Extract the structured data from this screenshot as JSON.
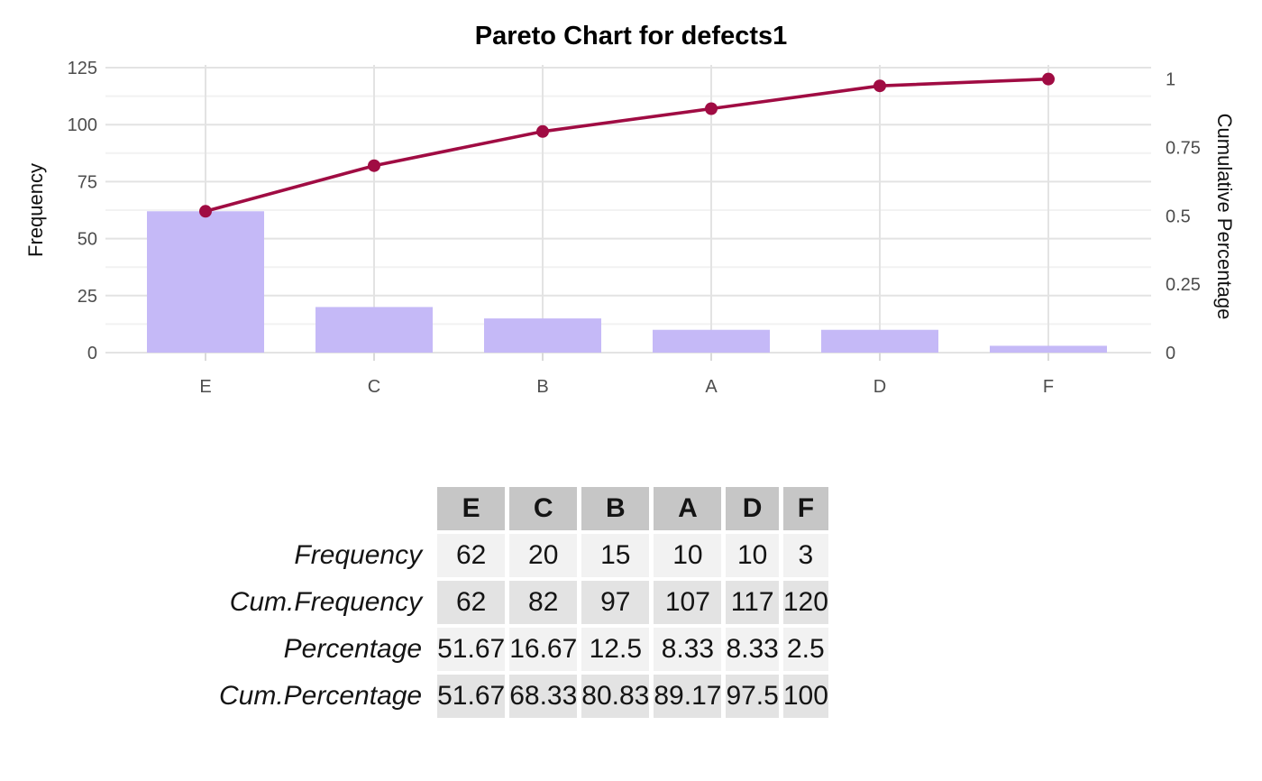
{
  "chart": {
    "title": "Pareto Chart for defects1",
    "left_axis": {
      "label": "Frequency",
      "tick_values": [
        0,
        25,
        50,
        75,
        100,
        125
      ],
      "tick_labels": [
        "0",
        "25",
        "50",
        "75",
        "100",
        "125"
      ]
    },
    "right_axis": {
      "label": "Cumulative Percentage",
      "tick_values": [
        0,
        0.25,
        0.5,
        0.75,
        1
      ],
      "tick_labels": [
        "0",
        "0.25",
        "0.5",
        "0.75",
        "1"
      ]
    }
  },
  "chart_data": {
    "type": "bar",
    "subtype": "pareto (bars + cumulative line)",
    "title": "Pareto Chart for defects1",
    "categories": [
      "E",
      "C",
      "B",
      "A",
      "D",
      "F"
    ],
    "series": [
      {
        "name": "Frequency",
        "type": "bar",
        "axis": "left",
        "values": [
          62,
          20,
          15,
          10,
          10,
          3
        ]
      },
      {
        "name": "Cum.Frequency",
        "type": "line",
        "axis": "left",
        "values": [
          62,
          82,
          97,
          107,
          117,
          120
        ]
      },
      {
        "name": "Cum.Percentage",
        "type": "line",
        "axis": "right",
        "values": [
          0.5167,
          0.6833,
          0.8083,
          0.8917,
          0.975,
          1
        ]
      }
    ],
    "xlabel": "",
    "ylabel": "Frequency",
    "y2label": "Cumulative Percentage",
    "ylim": [
      0,
      125
    ],
    "y2lim": [
      0,
      1
    ],
    "grid": "on",
    "legend": "none"
  },
  "colors": {
    "bar_fill": "#c5b9f7",
    "line": "#a00c43",
    "grid_major": "#e3e3e3",
    "grid_minor": "#f2f2f2",
    "tick_mark": "#dadada",
    "tick_text": "#4d4d4d"
  },
  "table": {
    "columns": [
      "E",
      "C",
      "B",
      "A",
      "D",
      "F"
    ],
    "rows": [
      {
        "label": "Frequency",
        "values": [
          "62",
          "20",
          "15",
          "10",
          "10",
          "3"
        ]
      },
      {
        "label": "Cum.Frequency",
        "values": [
          "62",
          "82",
          "97",
          "107",
          "117",
          "120"
        ]
      },
      {
        "label": "Percentage",
        "values": [
          "51.67",
          "16.67",
          "12.5",
          "8.33",
          "8.33",
          "2.5"
        ]
      },
      {
        "label": "Cum.Percentage",
        "values": [
          "51.67",
          "68.33",
          "80.83",
          "89.17",
          "97.5",
          "100"
        ]
      }
    ]
  }
}
